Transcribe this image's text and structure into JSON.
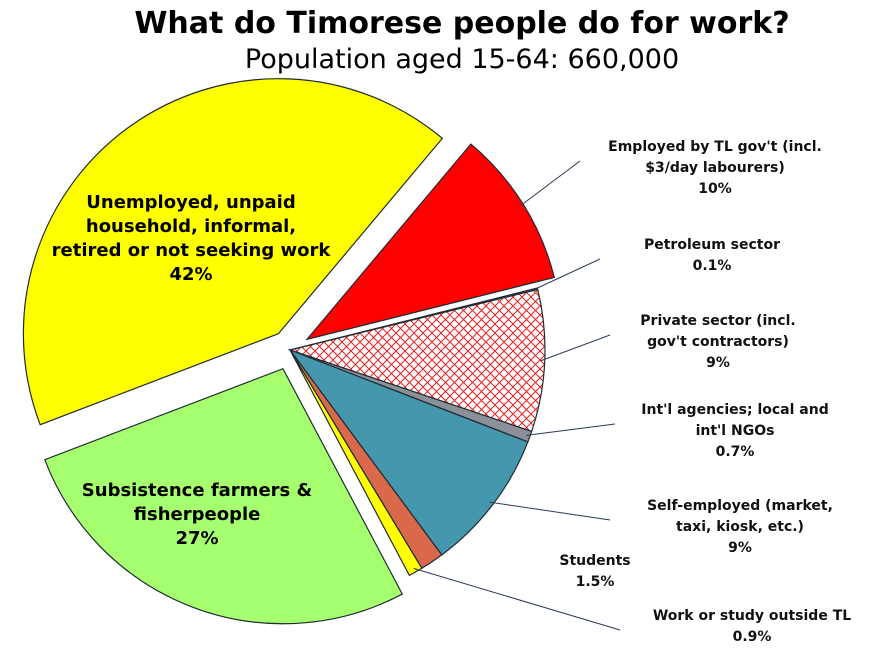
{
  "chart_data": {
    "type": "pie",
    "title": "What do Timorese people do for work?",
    "subtitle": "Population aged 15-64: 660,000",
    "slices": [
      {
        "key": "gov",
        "lines": [
          "Employed by TL gov't (incl.",
          "$3/day labourers)"
        ],
        "pct_label": "10%",
        "value": 10,
        "color": "#ff0000",
        "placement": "outside"
      },
      {
        "key": "petroleum",
        "lines": [
          "Petroleum sector"
        ],
        "pct_label": "0.1%",
        "value": 0.1,
        "color": "#3a5a9a",
        "placement": "outside"
      },
      {
        "key": "private",
        "lines": [
          "Private sector (incl.",
          "gov't contractors)"
        ],
        "pct_label": "9%",
        "value": 9,
        "color": "#ffffff",
        "pattern": "red-crosshatch",
        "placement": "outside"
      },
      {
        "key": "intl",
        "lines": [
          "Int'l agencies; local and",
          "int'l NGOs"
        ],
        "pct_label": "0.7%",
        "value": 0.7,
        "color": "#8a9199",
        "placement": "outside"
      },
      {
        "key": "self",
        "lines": [
          "Self-employed (market,",
          "taxi, kiosk, etc.)"
        ],
        "pct_label": "9%",
        "value": 9,
        "color": "#4497ad",
        "placement": "outside"
      },
      {
        "key": "students",
        "lines": [
          "Students"
        ],
        "pct_label": "1.5%",
        "value": 1.5,
        "color": "#d9694a",
        "placement": "outside"
      },
      {
        "key": "abroad",
        "lines": [
          "Work or study outside TL"
        ],
        "pct_label": "0.9%",
        "value": 0.9,
        "color": "#ffff00",
        "placement": "outside"
      },
      {
        "key": "subsistence",
        "lines": [
          "Subsistence farmers &",
          "fisherpeople"
        ],
        "pct_label": "27%",
        "value": 27,
        "color": "#a6ff6f",
        "placement": "inside"
      },
      {
        "key": "unemployed",
        "lines": [
          "Unemployed, unpaid",
          "household, informal,",
          "retired or not seeking work"
        ],
        "pct_label": "42%",
        "value": 42,
        "color": "#ffff00",
        "placement": "inside"
      }
    ],
    "start_angle_deg": -50,
    "direction": "clockwise",
    "exploded": [
      "gov",
      "subsistence",
      "unemployed"
    ],
    "legend": "none"
  }
}
